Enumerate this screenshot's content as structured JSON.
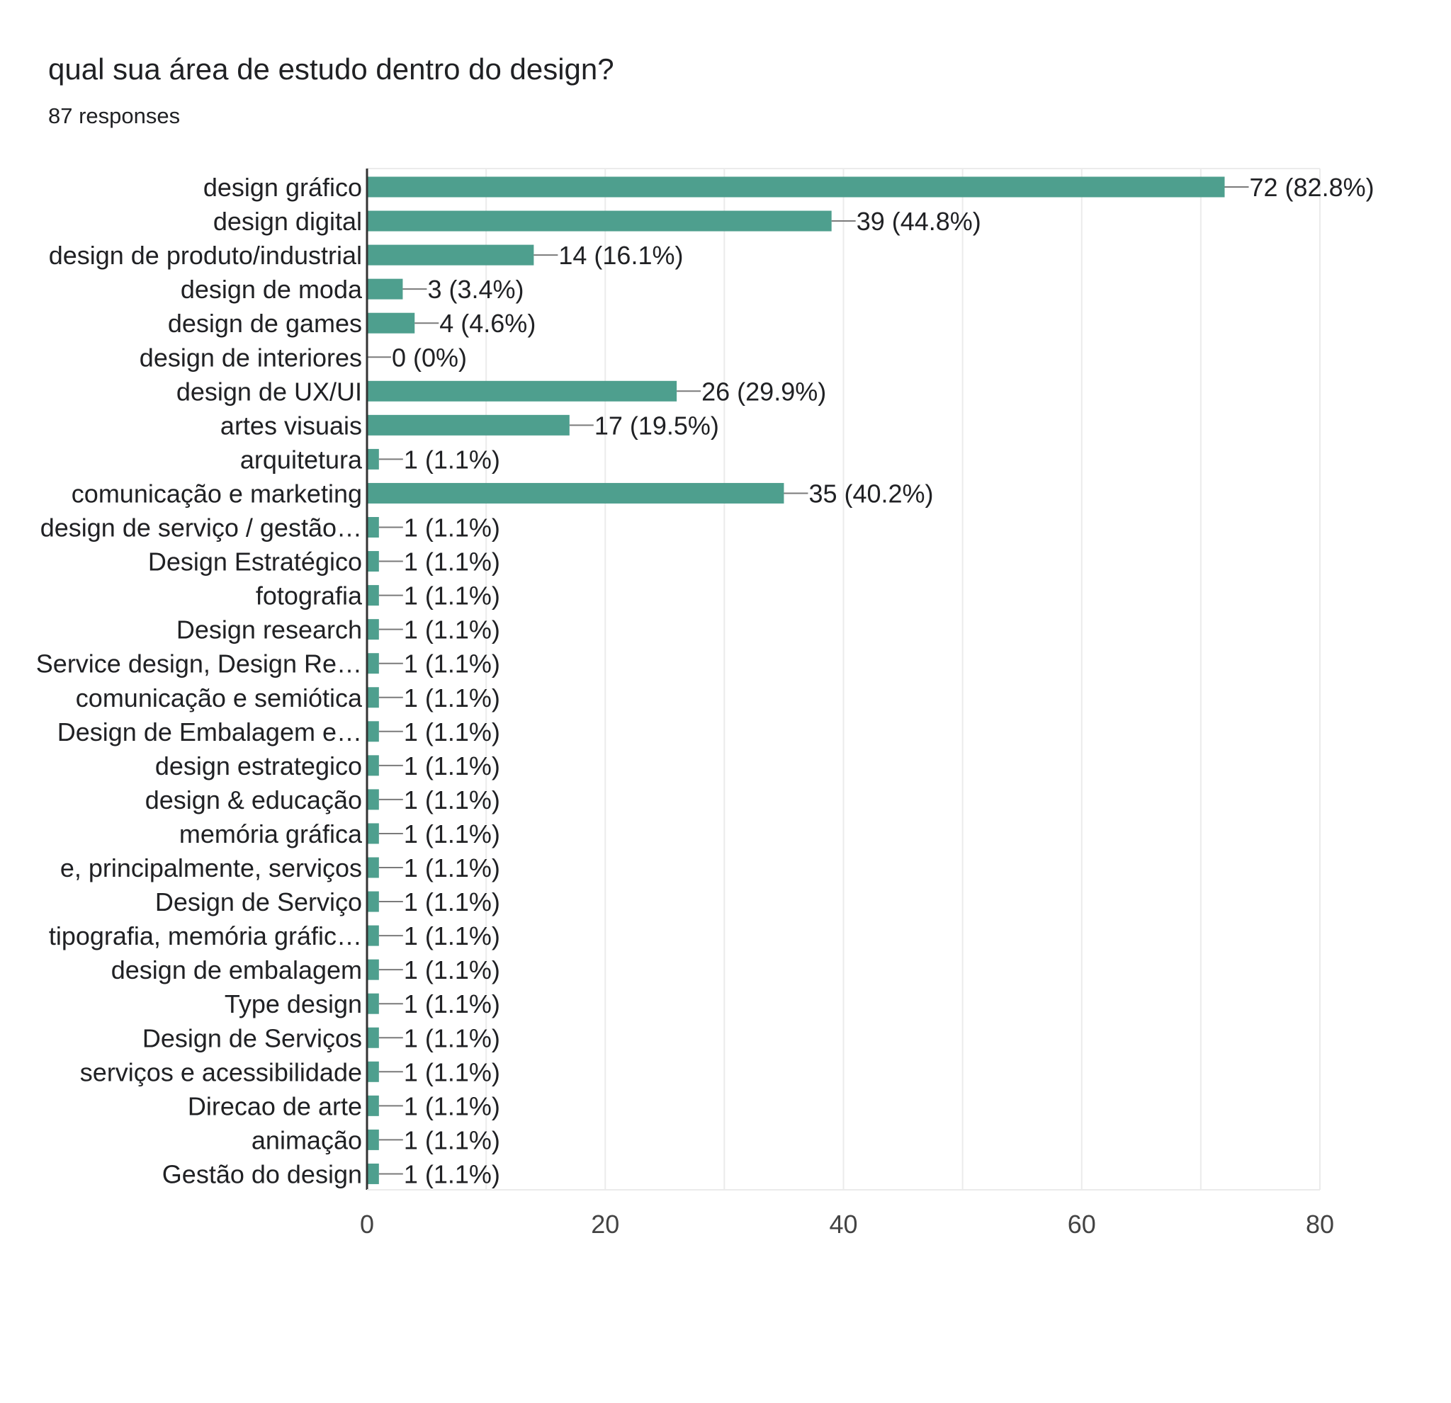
{
  "header": {
    "title": "qual sua área de estudo dentro do design?",
    "responses": "87 responses"
  },
  "colors": {
    "bar": "#4e9f8e",
    "gridline": "#ebebeb",
    "axis": "#333333",
    "leader": "#7a7a7a",
    "text": "#202124",
    "tick_text": "#444444"
  },
  "chart_data": {
    "type": "bar",
    "orientation": "horizontal",
    "title": "qual sua área de estudo dentro do design?",
    "subtitle": "87 responses",
    "xlim": [
      0,
      80
    ],
    "xticks": [
      0,
      20,
      40,
      60,
      80
    ],
    "minor_gridlines": [
      10,
      30,
      50,
      70
    ],
    "grid": true,
    "categories": [
      "design gráfico",
      "design digital",
      "design de produto/industrial",
      "design de moda",
      "design de games",
      "design de interiores",
      "design de UX/UI",
      "artes visuais",
      "arquitetura",
      "comunicação e marketing",
      "design de serviço / gestão…",
      "Design Estratégico",
      "fotografia",
      "Design research",
      "Service design, Design Re…",
      "comunicação e semiótica",
      "Design de Embalagem e…",
      "design estrategico",
      "design & educação",
      "memória gráfica",
      "e, principalmente, serviços",
      "Design de Serviço",
      "tipografia, memória gráfic…",
      "design de embalagem",
      "Type design",
      "Design de Serviços",
      "serviços e acessibilidade",
      "Direcao de arte",
      "animação",
      "Gestão do design"
    ],
    "values": [
      72,
      39,
      14,
      3,
      4,
      0,
      26,
      17,
      1,
      35,
      1,
      1,
      1,
      1,
      1,
      1,
      1,
      1,
      1,
      1,
      1,
      1,
      1,
      1,
      1,
      1,
      1,
      1,
      1,
      1
    ],
    "data_labels": [
      "72 (82.8%)",
      "39 (44.8%)",
      "14 (16.1%)",
      "3 (3.4%)",
      "4 (4.6%)",
      "0 (0%)",
      "26 (29.9%)",
      "17 (19.5%)",
      "1 (1.1%)",
      "35 (40.2%)",
      "1 (1.1%)",
      "1 (1.1%)",
      "1 (1.1%)",
      "1 (1.1%)",
      "1 (1.1%)",
      "1 (1.1%)",
      "1 (1.1%)",
      "1 (1.1%)",
      "1 (1.1%)",
      "1 (1.1%)",
      "1 (1.1%)",
      "1 (1.1%)",
      "1 (1.1%)",
      "1 (1.1%)",
      "1 (1.1%)",
      "1 (1.1%)",
      "1 (1.1%)",
      "1 (1.1%)",
      "1 (1.1%)",
      "1 (1.1%)"
    ]
  }
}
